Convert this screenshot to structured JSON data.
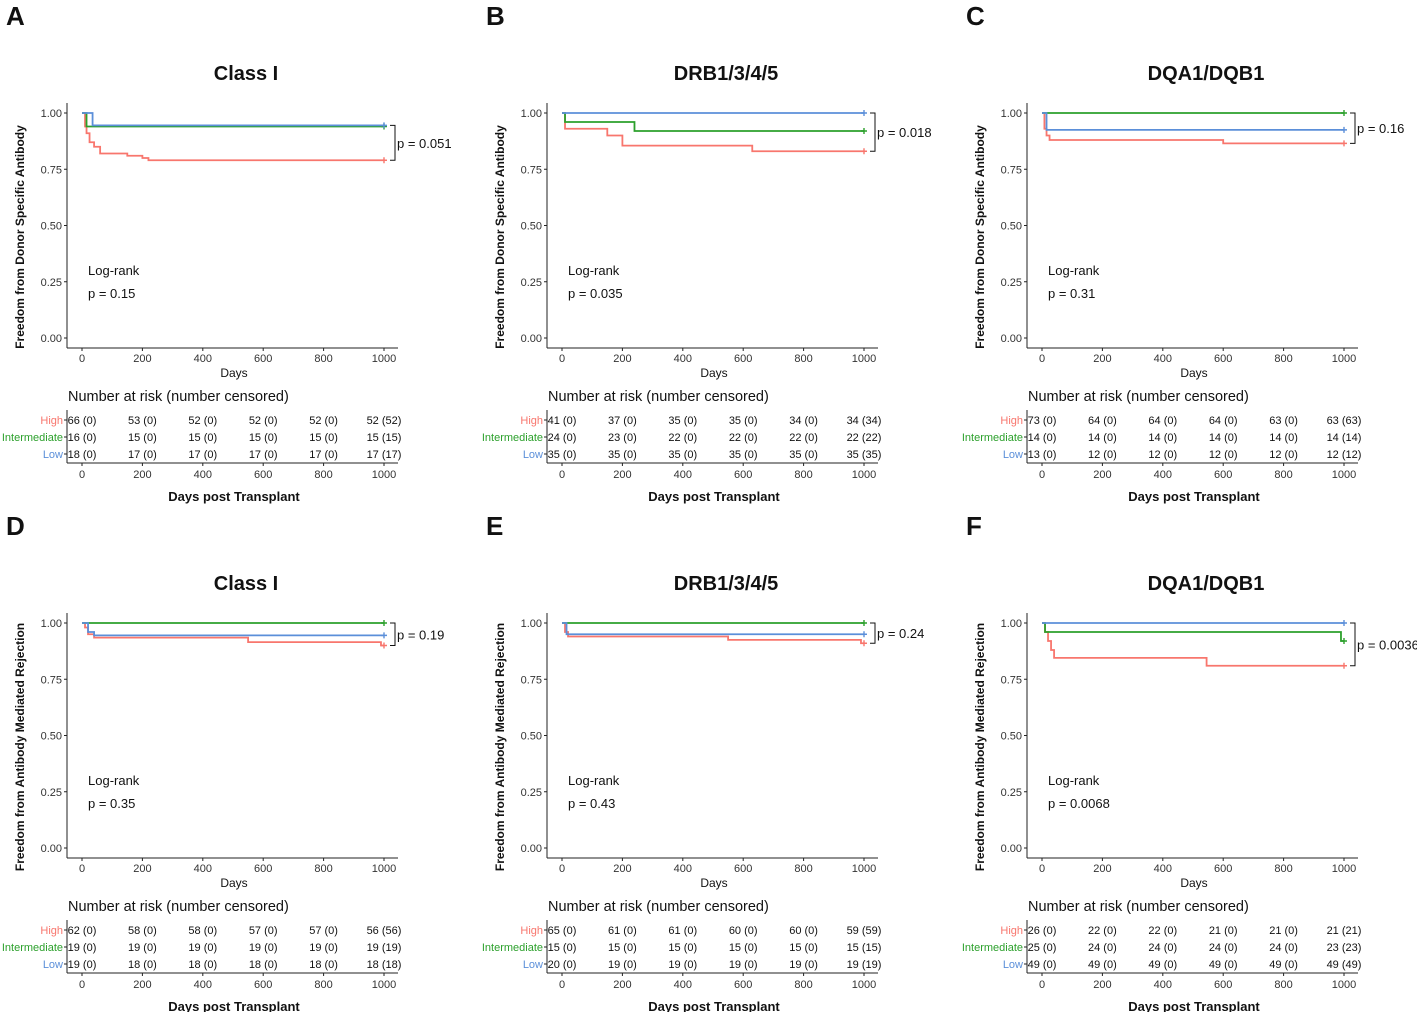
{
  "colors": {
    "High": "#F8766D",
    "Intermediate": "#2CA02C",
    "Low": "#5B8FD9"
  },
  "group_names": [
    "High",
    "Intermediate",
    "Low"
  ],
  "chart_data": [
    {
      "type": "line",
      "panel": "A",
      "title": "Class I",
      "ylabel": "Freedom from Donor Specific Antibody",
      "xlabel": "Days",
      "xlim": [
        0,
        1000
      ],
      "ylim": [
        0,
        1
      ],
      "xticks": [
        "0",
        "200",
        "400",
        "600",
        "800",
        "1000"
      ],
      "yticks": [
        "0.00",
        "0.25",
        "0.50",
        "0.75",
        "1.00"
      ],
      "logrank": "Log-rank",
      "logrank_p": "p = 0.15",
      "pairwise_p": "p = 0.051",
      "series": [
        {
          "name": "High",
          "x": [
            0,
            10,
            15,
            25,
            40,
            60,
            150,
            200,
            220,
            1000
          ],
          "y": [
            1,
            0.94,
            0.91,
            0.87,
            0.85,
            0.82,
            0.81,
            0.8,
            0.79,
            0.79
          ]
        },
        {
          "name": "Intermediate",
          "x": [
            0,
            15,
            1000
          ],
          "y": [
            1,
            0.94,
            0.94
          ]
        },
        {
          "name": "Low",
          "x": [
            0,
            35,
            1000
          ],
          "y": [
            1,
            0.945,
            0.945
          ]
        }
      ],
      "risk_title": "Number at risk (number censored)",
      "risk_xlabel": "Days post Transplant",
      "risk_table": {
        "High": [
          "66 (0)",
          "53 (0)",
          "52 (0)",
          "52 (0)",
          "52 (0)",
          "52 (52)"
        ],
        "Intermediate": [
          "16 (0)",
          "15 (0)",
          "15 (0)",
          "15 (0)",
          "15 (0)",
          "15 (15)"
        ],
        "Low": [
          "18 (0)",
          "17 (0)",
          "17 (0)",
          "17 (0)",
          "17 (0)",
          "17 (17)"
        ]
      }
    },
    {
      "type": "line",
      "panel": "B",
      "title": "DRB1/3/4/5",
      "ylabel": "Freedom from Donor Specific Antibody",
      "xlabel": "Days",
      "xlim": [
        0,
        1000
      ],
      "ylim": [
        0,
        1
      ],
      "xticks": [
        "0",
        "200",
        "400",
        "600",
        "800",
        "1000"
      ],
      "yticks": [
        "0.00",
        "0.25",
        "0.50",
        "0.75",
        "1.00"
      ],
      "logrank": "Log-rank",
      "logrank_p": "p = 0.035",
      "pairwise_p": "p = 0.018",
      "series": [
        {
          "name": "High",
          "x": [
            0,
            10,
            150,
            200,
            630,
            1000
          ],
          "y": [
            1,
            0.93,
            0.9,
            0.855,
            0.83,
            0.83
          ]
        },
        {
          "name": "Intermediate",
          "x": [
            0,
            10,
            240,
            1000
          ],
          "y": [
            1,
            0.96,
            0.92,
            0.92
          ]
        },
        {
          "name": "Low",
          "x": [
            0,
            1000
          ],
          "y": [
            1,
            1
          ]
        }
      ],
      "risk_title": "Number at risk (number censored)",
      "risk_xlabel": "Days post Transplant",
      "risk_table": {
        "High": [
          "41 (0)",
          "37 (0)",
          "35 (0)",
          "35 (0)",
          "34 (0)",
          "34 (34)"
        ],
        "Intermediate": [
          "24 (0)",
          "23 (0)",
          "22 (0)",
          "22 (0)",
          "22 (0)",
          "22 (22)"
        ],
        "Low": [
          "35 (0)",
          "35 (0)",
          "35 (0)",
          "35 (0)",
          "35 (0)",
          "35 (35)"
        ]
      }
    },
    {
      "type": "line",
      "panel": "C",
      "title": "DQA1/DQB1",
      "ylabel": "Freedom from Donor Specific Antibody",
      "xlabel": "Days",
      "xlim": [
        0,
        1000
      ],
      "ylim": [
        0,
        1
      ],
      "xticks": [
        "0",
        "200",
        "400",
        "600",
        "800",
        "1000"
      ],
      "yticks": [
        "0.00",
        "0.25",
        "0.50",
        "0.75",
        "1.00"
      ],
      "logrank": "Log-rank",
      "logrank_p": "p = 0.31",
      "pairwise_p": "p = 0.16",
      "series": [
        {
          "name": "High",
          "x": [
            0,
            8,
            15,
            25,
            600,
            1000
          ],
          "y": [
            1,
            0.93,
            0.9,
            0.88,
            0.865,
            0.865
          ]
        },
        {
          "name": "Intermediate",
          "x": [
            0,
            1000
          ],
          "y": [
            1,
            1
          ]
        },
        {
          "name": "Low",
          "x": [
            0,
            15,
            1000
          ],
          "y": [
            1,
            0.925,
            0.925
          ]
        }
      ],
      "risk_title": "Number at risk (number censored)",
      "risk_xlabel": "Days post Transplant",
      "risk_table": {
        "High": [
          "73 (0)",
          "64 (0)",
          "64 (0)",
          "64 (0)",
          "63 (0)",
          "63 (63)"
        ],
        "Intermediate": [
          "14 (0)",
          "14 (0)",
          "14 (0)",
          "14 (0)",
          "14 (0)",
          "14 (14)"
        ],
        "Low": [
          "13 (0)",
          "12 (0)",
          "12 (0)",
          "12 (0)",
          "12 (0)",
          "12 (12)"
        ]
      }
    },
    {
      "type": "line",
      "panel": "D",
      "title": "Class I",
      "ylabel": "Freedom from Antibody Mediated Rejection",
      "xlabel": "Days",
      "xlim": [
        0,
        1000
      ],
      "ylim": [
        0,
        1
      ],
      "xticks": [
        "0",
        "200",
        "400",
        "600",
        "800",
        "1000"
      ],
      "yticks": [
        "0.00",
        "0.25",
        "0.50",
        "0.75",
        "1.00"
      ],
      "logrank": "Log-rank",
      "logrank_p": "p = 0.35",
      "pairwise_p": "p = 0.19",
      "series": [
        {
          "name": "High",
          "x": [
            0,
            10,
            20,
            40,
            550,
            990,
            1000
          ],
          "y": [
            1,
            0.98,
            0.95,
            0.935,
            0.915,
            0.9,
            0.9
          ]
        },
        {
          "name": "Intermediate",
          "x": [
            0,
            1000
          ],
          "y": [
            1,
            1
          ]
        },
        {
          "name": "Low",
          "x": [
            0,
            20,
            40,
            1000
          ],
          "y": [
            1,
            0.96,
            0.945,
            0.945
          ]
        }
      ],
      "risk_title": "Number at risk (number censored)",
      "risk_xlabel": "Days post Transplant",
      "risk_table": {
        "High": [
          "62 (0)",
          "58 (0)",
          "58 (0)",
          "57 (0)",
          "57 (0)",
          "56 (56)"
        ],
        "Intermediate": [
          "19 (0)",
          "19 (0)",
          "19 (0)",
          "19 (0)",
          "19 (0)",
          "19 (19)"
        ],
        "Low": [
          "19 (0)",
          "18 (0)",
          "18 (0)",
          "18 (0)",
          "18 (0)",
          "18 (18)"
        ]
      }
    },
    {
      "type": "line",
      "panel": "E",
      "title": "DRB1/3/4/5",
      "ylabel": "Freedom from Antibody Mediated Rejection",
      "xlabel": "Days",
      "xlim": [
        0,
        1000
      ],
      "ylim": [
        0,
        1
      ],
      "xticks": [
        "0",
        "200",
        "400",
        "600",
        "800",
        "1000"
      ],
      "yticks": [
        "0.00",
        "0.25",
        "0.50",
        "0.75",
        "1.00"
      ],
      "logrank": "Log-rank",
      "logrank_p": "p = 0.43",
      "pairwise_p": "p = 0.24",
      "series": [
        {
          "name": "High",
          "x": [
            0,
            10,
            20,
            550,
            990,
            1000
          ],
          "y": [
            1,
            0.96,
            0.94,
            0.925,
            0.91,
            0.91
          ]
        },
        {
          "name": "Intermediate",
          "x": [
            0,
            1000
          ],
          "y": [
            1,
            1
          ]
        },
        {
          "name": "Low",
          "x": [
            0,
            15,
            1000
          ],
          "y": [
            1,
            0.95,
            0.95
          ]
        }
      ],
      "risk_title": "Number at risk (number censored)",
      "risk_xlabel": "Days post Transplant",
      "risk_table": {
        "High": [
          "65 (0)",
          "61 (0)",
          "61 (0)",
          "60 (0)",
          "60 (0)",
          "59 (59)"
        ],
        "Intermediate": [
          "15 (0)",
          "15 (0)",
          "15 (0)",
          "15 (0)",
          "15 (0)",
          "15 (15)"
        ],
        "Low": [
          "20 (0)",
          "19 (0)",
          "19 (0)",
          "19 (0)",
          "19 (0)",
          "19 (19)"
        ]
      }
    },
    {
      "type": "line",
      "panel": "F",
      "title": "DQA1/DQB1",
      "ylabel": "Freedom from Antibody Mediated Rejection",
      "xlabel": "Days",
      "xlim": [
        0,
        1000
      ],
      "ylim": [
        0,
        1
      ],
      "xticks": [
        "0",
        "200",
        "400",
        "600",
        "800",
        "1000"
      ],
      "yticks": [
        "0.00",
        "0.25",
        "0.50",
        "0.75",
        "1.00"
      ],
      "logrank": "Log-rank",
      "logrank_p": "p = 0.0068",
      "pairwise_p": "p = 0.0036",
      "series": [
        {
          "name": "High",
          "x": [
            0,
            10,
            20,
            30,
            40,
            545,
            1000
          ],
          "y": [
            1,
            0.96,
            0.92,
            0.88,
            0.845,
            0.81,
            0.81
          ]
        },
        {
          "name": "Intermediate",
          "x": [
            0,
            10,
            990,
            1000
          ],
          "y": [
            1,
            0.96,
            0.92,
            0.92
          ]
        },
        {
          "name": "Low",
          "x": [
            0,
            1000
          ],
          "y": [
            1,
            1
          ]
        }
      ],
      "risk_title": "Number at risk (number censored)",
      "risk_xlabel": "Days post Transplant",
      "risk_table": {
        "High": [
          "26 (0)",
          "22 (0)",
          "22 (0)",
          "21 (0)",
          "21 (0)",
          "21 (21)"
        ],
        "Intermediate": [
          "25 (0)",
          "24 (0)",
          "24 (0)",
          "24 (0)",
          "24 (0)",
          "23 (23)"
        ],
        "Low": [
          "49 (0)",
          "49 (0)",
          "49 (0)",
          "49 (0)",
          "49 (0)",
          "49 (49)"
        ]
      }
    }
  ]
}
